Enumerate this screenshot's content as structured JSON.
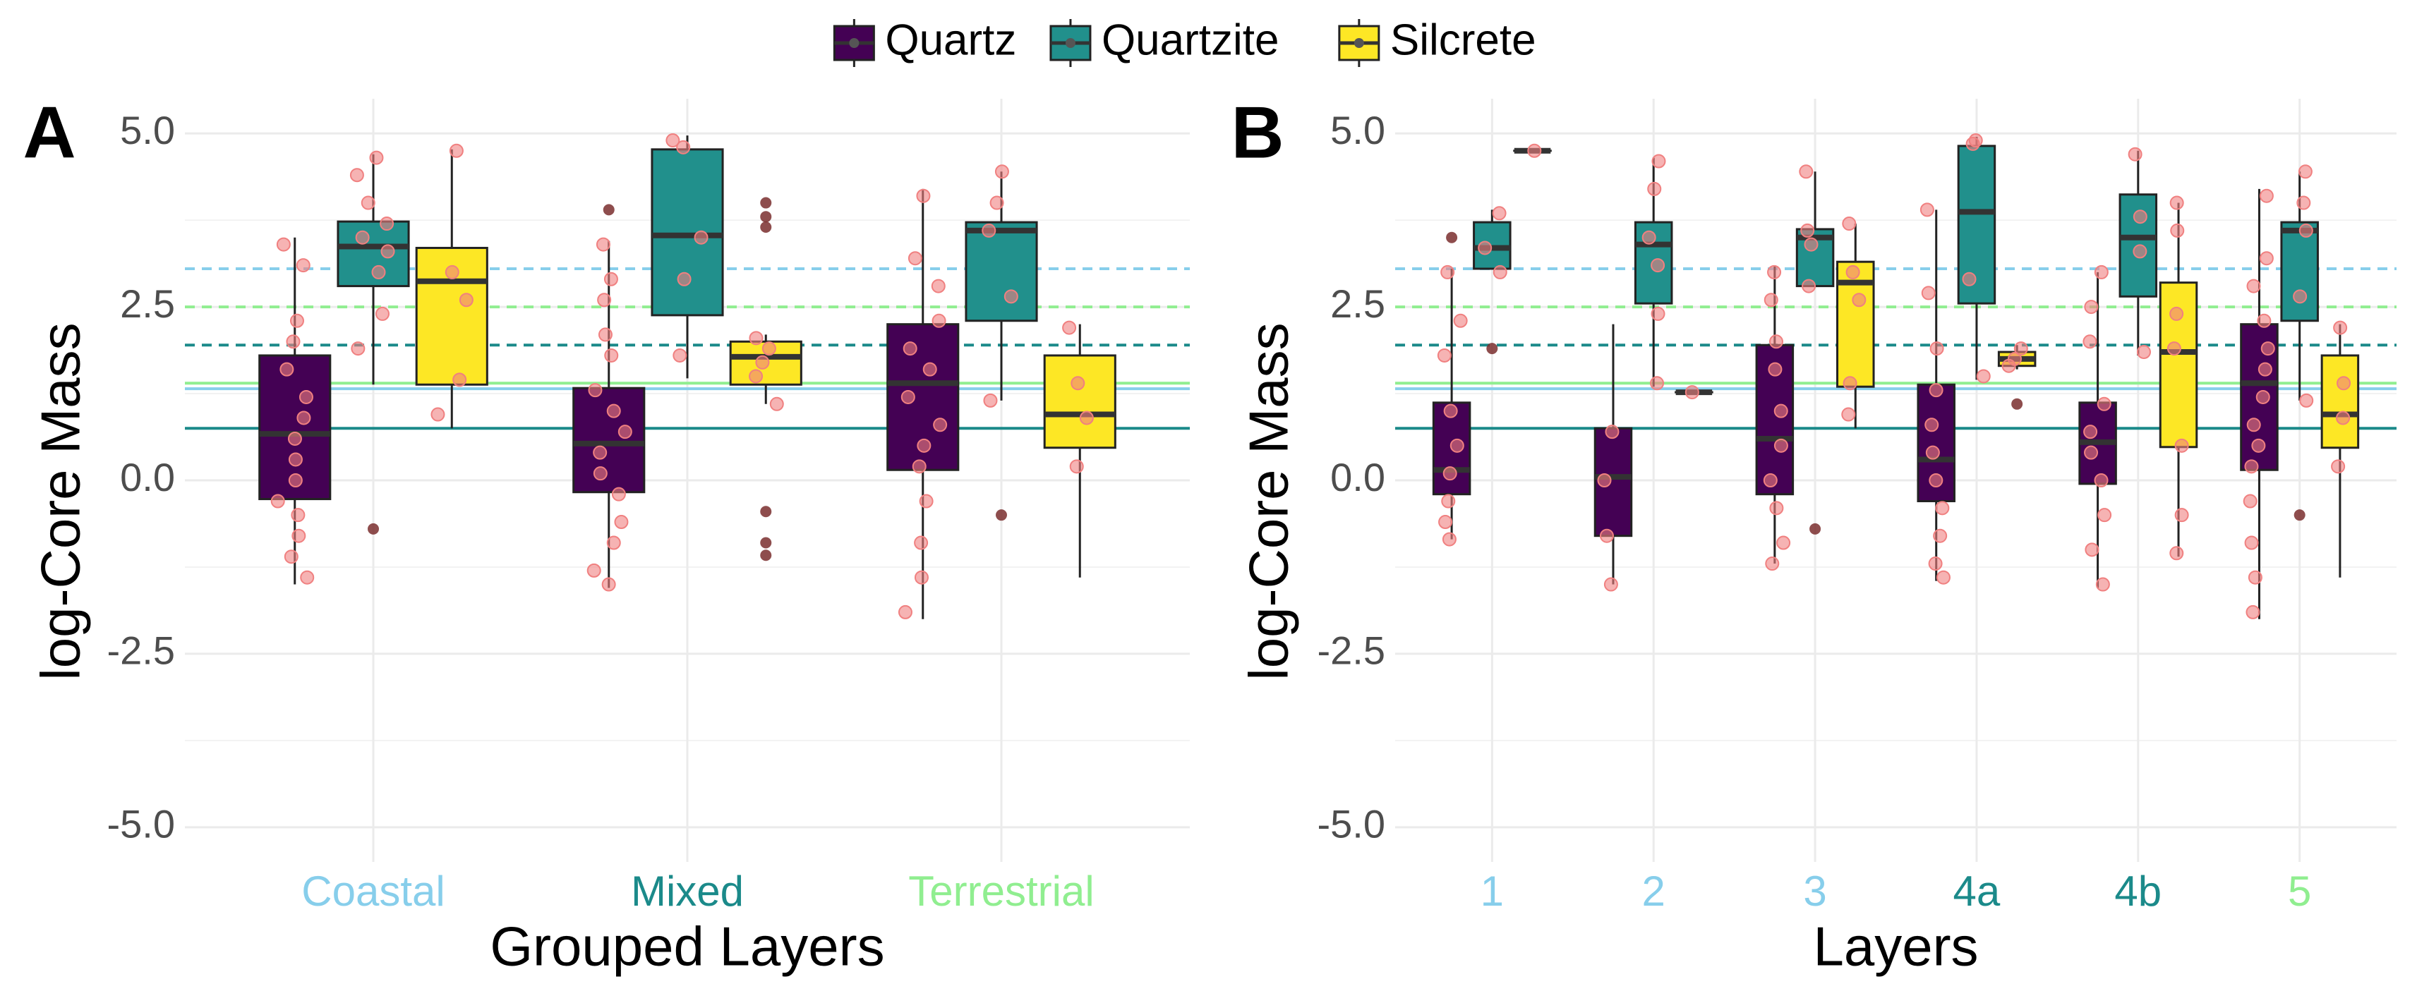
{
  "legend_position": "top",
  "chart_data": [
    {
      "type": "box",
      "panel_label": "A",
      "x_label": "Grouped Layers",
      "y_label": "log-Core Mass",
      "categories": [
        "Coastal",
        "Mixed",
        "Terrestrial"
      ],
      "category_colors": [
        "#87ceeb",
        "#1b8a8a",
        "#90ee90"
      ],
      "ylim": [
        -5.5,
        5.5
      ],
      "yticks": [
        5.0,
        2.5,
        0.0,
        -2.5,
        -5.0
      ],
      "yticks_labels": [
        "5.0",
        "2.5",
        "0.0",
        "-2.5",
        "-5.0"
      ],
      "grid": true,
      "point_color": "#f08080",
      "hlines": [
        {
          "value": 1.32,
          "color": "#87ceeb",
          "style": "solid"
        },
        {
          "value": 1.4,
          "color": "#90ee90",
          "style": "solid"
        },
        {
          "value": 0.75,
          "color": "#1b8a8a",
          "style": "solid"
        },
        {
          "value": 3.05,
          "color": "#87ceeb",
          "style": "dashed"
        },
        {
          "value": 2.5,
          "color": "#90ee90",
          "style": "dashed"
        },
        {
          "value": 1.95,
          "color": "#1b8a8a",
          "style": "dashed"
        }
      ],
      "series": [
        {
          "name": "Quartz",
          "color": "#440154",
          "boxes": [
            {
              "min": -1.5,
              "q1": -0.27,
              "median": 0.67,
              "q3": 1.8,
              "max": 3.5,
              "outliers": [],
              "points": [
                3.4,
                3.1,
                2.3,
                2.0,
                1.6,
                1.2,
                0.9,
                0.6,
                0.3,
                0.0,
                -0.3,
                -0.5,
                -0.8,
                -1.1,
                -1.4
              ]
            },
            {
              "min": -1.55,
              "q1": -0.17,
              "median": 0.53,
              "q3": 1.33,
              "max": 3.45,
              "outliers": [
                3.9
              ],
              "points": [
                3.4,
                2.9,
                2.6,
                2.1,
                1.8,
                1.3,
                1.0,
                0.7,
                0.4,
                0.1,
                -0.2,
                -0.6,
                -0.9,
                -1.3,
                -1.5
              ]
            },
            {
              "min": -2.0,
              "q1": 0.15,
              "median": 1.4,
              "q3": 2.25,
              "max": 4.2,
              "outliers": [],
              "points": [
                4.1,
                3.2,
                2.8,
                2.3,
                1.9,
                1.6,
                1.2,
                0.8,
                0.5,
                0.2,
                -0.3,
                -0.9,
                -1.4,
                -1.9
              ]
            }
          ]
        },
        {
          "name": "Quartzite",
          "color": "#21908c",
          "boxes": [
            {
              "min": 1.38,
              "q1": 2.8,
              "median": 3.37,
              "q3": 3.73,
              "max": 4.7,
              "outliers": [
                -0.7
              ],
              "points": [
                4.65,
                4.4,
                4.0,
                3.7,
                3.5,
                3.3,
                3.0,
                2.4,
                1.9
              ]
            },
            {
              "min": 1.47,
              "q1": 2.38,
              "median": 3.53,
              "q3": 4.77,
              "max": 4.97,
              "outliers": [],
              "points": [
                4.9,
                4.8,
                3.5,
                2.9,
                1.8
              ]
            },
            {
              "min": 1.15,
              "q1": 2.3,
              "median": 3.6,
              "q3": 3.72,
              "max": 4.45,
              "outliers": [
                -0.5
              ],
              "points": [
                4.45,
                4.0,
                3.6,
                2.65,
                1.15
              ]
            }
          ]
        },
        {
          "name": "Silcrete",
          "color": "#fde725",
          "boxes": [
            {
              "min": 0.75,
              "q1": 1.38,
              "median": 2.87,
              "q3": 3.35,
              "max": 4.77,
              "outliers": [],
              "points": [
                4.75,
                3.0,
                2.6,
                1.45,
                0.95
              ]
            },
            {
              "min": 1.1,
              "q1": 1.38,
              "median": 1.78,
              "q3": 2.0,
              "max": 2.1,
              "outliers": [
                4.0,
                3.8,
                3.65,
                -0.45,
                -0.9,
                -1.08
              ],
              "points": [
                2.05,
                1.9,
                1.7,
                1.5,
                1.1
              ]
            },
            {
              "min": -1.4,
              "q1": 0.47,
              "median": 0.95,
              "q3": 1.8,
              "max": 2.25,
              "outliers": [],
              "points": [
                2.2,
                1.4,
                0.9,
                0.2
              ]
            }
          ]
        }
      ]
    },
    {
      "type": "box",
      "panel_label": "B",
      "x_label": "Layers",
      "y_label": "log-Core Mass",
      "categories": [
        "1",
        "2",
        "3",
        "4a",
        "4b",
        "5"
      ],
      "category_colors": [
        "#87ceeb",
        "#87ceeb",
        "#87ceeb",
        "#1b8a8a",
        "#1b8a8a",
        "#90ee90"
      ],
      "ylim": [
        -5.5,
        5.5
      ],
      "yticks": [
        5.0,
        2.5,
        0.0,
        -2.5,
        -5.0
      ],
      "yticks_labels": [
        "5.0",
        "2.5",
        "0.0",
        "-2.5",
        "-5.0"
      ],
      "grid": true,
      "point_color": "#f08080",
      "hlines": [
        {
          "value": 1.32,
          "color": "#87ceeb",
          "style": "solid"
        },
        {
          "value": 1.4,
          "color": "#90ee90",
          "style": "solid"
        },
        {
          "value": 0.75,
          "color": "#1b8a8a",
          "style": "solid"
        },
        {
          "value": 3.05,
          "color": "#87ceeb",
          "style": "dashed"
        },
        {
          "value": 2.5,
          "color": "#90ee90",
          "style": "dashed"
        },
        {
          "value": 1.95,
          "color": "#1b8a8a",
          "style": "dashed"
        }
      ],
      "series": [
        {
          "name": "Quartz",
          "color": "#440154",
          "boxes": [
            {
              "min": -0.85,
              "q1": -0.2,
              "median": 0.15,
              "q3": 1.12,
              "max": 3.05,
              "outliers": [
                3.5
              ],
              "points": [
                3.0,
                2.3,
                1.8,
                1.0,
                0.5,
                0.1,
                -0.3,
                -0.6,
                -0.85
              ]
            },
            {
              "min": -1.5,
              "q1": -0.8,
              "median": 0.05,
              "q3": 0.75,
              "max": 2.25,
              "outliers": [],
              "points": [
                0.7,
                0.0,
                -0.8,
                -1.5
              ]
            },
            {
              "min": -1.2,
              "q1": -0.2,
              "median": 0.6,
              "q3": 1.95,
              "max": 3.1,
              "outliers": [],
              "points": [
                3.0,
                2.6,
                2.0,
                1.6,
                1.0,
                0.5,
                0.0,
                -0.4,
                -0.9,
                -1.2
              ]
            },
            {
              "min": -1.45,
              "q1": -0.3,
              "median": 0.3,
              "q3": 1.38,
              "max": 3.9,
              "outliers": [],
              "points": [
                3.9,
                2.7,
                1.9,
                1.3,
                0.8,
                0.4,
                0.0,
                -0.4,
                -0.8,
                -1.2,
                -1.4
              ]
            },
            {
              "min": -1.55,
              "q1": -0.05,
              "median": 0.55,
              "q3": 1.12,
              "max": 3.0,
              "outliers": [],
              "points": [
                3.0,
                2.5,
                2.0,
                1.1,
                0.7,
                0.4,
                0.0,
                -0.5,
                -1.0,
                -1.5
              ]
            },
            {
              "min": -2.0,
              "q1": 0.15,
              "median": 1.4,
              "q3": 2.25,
              "max": 4.2,
              "outliers": [],
              "points": [
                4.1,
                3.2,
                2.8,
                2.3,
                1.9,
                1.6,
                1.2,
                0.8,
                0.5,
                0.2,
                -0.3,
                -0.9,
                -1.4,
                -1.9
              ]
            }
          ]
        },
        {
          "name": "Quartzite",
          "color": "#21908c",
          "boxes": [
            {
              "min": 3.05,
              "q1": 3.05,
              "median": 3.35,
              "q3": 3.72,
              "max": 3.9,
              "outliers": [
                1.9
              ],
              "points": [
                3.85,
                3.35,
                3.0
              ]
            },
            {
              "min": 1.35,
              "q1": 2.55,
              "median": 3.4,
              "q3": 3.72,
              "max": 4.65,
              "outliers": [],
              "points": [
                4.6,
                4.2,
                3.5,
                3.1,
                2.4,
                1.4
              ]
            },
            {
              "min": 2.8,
              "q1": 2.8,
              "median": 3.5,
              "q3": 3.62,
              "max": 4.45,
              "outliers": [
                -0.7
              ],
              "points": [
                4.45,
                3.6,
                3.4,
                2.8
              ]
            },
            {
              "min": 1.45,
              "q1": 2.55,
              "median": 3.87,
              "q3": 4.82,
              "max": 4.95,
              "outliers": [],
              "points": [
                4.9,
                4.85,
                2.9,
                1.5
              ]
            },
            {
              "min": 1.8,
              "q1": 2.65,
              "median": 3.5,
              "q3": 4.12,
              "max": 4.75,
              "outliers": [],
              "points": [
                4.7,
                3.8,
                3.3,
                1.85
              ]
            },
            {
              "min": 1.15,
              "q1": 2.3,
              "median": 3.6,
              "q3": 3.72,
              "max": 4.45,
              "outliers": [
                -0.5
              ],
              "points": [
                4.45,
                4.0,
                3.6,
                2.65,
                1.15
              ]
            }
          ]
        },
        {
          "name": "Silcrete",
          "color": "#fde725",
          "boxes": [
            {
              "min": 4.75,
              "q1": 4.75,
              "median": 4.75,
              "q3": 4.75,
              "max": 4.75,
              "outliers": [],
              "points": [
                4.75
              ]
            },
            {
              "min": 1.27,
              "q1": 1.27,
              "median": 1.27,
              "q3": 1.27,
              "max": 1.27,
              "outliers": [],
              "points": [
                1.27
              ]
            },
            {
              "min": 0.75,
              "q1": 1.35,
              "median": 2.85,
              "q3": 3.15,
              "max": 3.7,
              "outliers": [],
              "points": [
                3.7,
                3.0,
                2.6,
                1.4,
                0.95
              ]
            },
            {
              "min": 1.6,
              "q1": 1.65,
              "median": 1.75,
              "q3": 1.85,
              "max": 1.95,
              "outliers": [
                1.1
              ],
              "points": [
                1.9,
                1.75,
                1.65
              ]
            },
            {
              "min": -1.1,
              "q1": 0.48,
              "median": 1.85,
              "q3": 2.85,
              "max": 4.0,
              "outliers": [],
              "points": [
                4.0,
                3.6,
                2.4,
                1.9,
                0.5,
                -0.5,
                -1.05
              ]
            },
            {
              "min": -1.4,
              "q1": 0.47,
              "median": 0.95,
              "q3": 1.8,
              "max": 2.25,
              "outliers": [],
              "points": [
                2.2,
                1.4,
                0.9,
                0.2
              ]
            }
          ]
        }
      ]
    }
  ]
}
